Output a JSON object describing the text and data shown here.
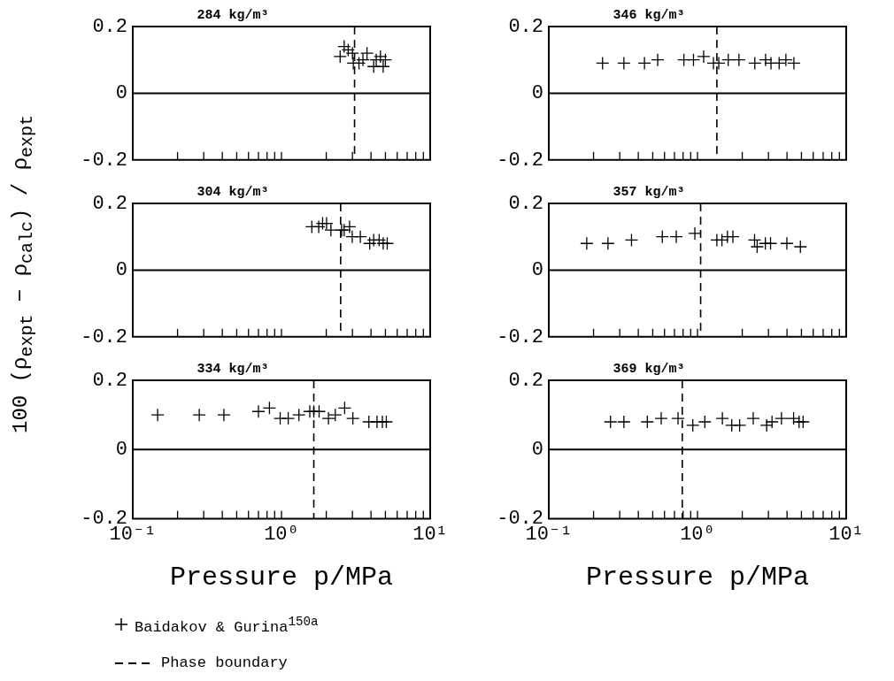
{
  "chart_data": [
    {
      "type": "scatter",
      "title": "284 kg/m³",
      "marker": "cross",
      "grid": false,
      "tick_labels": "y",
      "xlim": [
        0.1,
        10
      ],
      "ylim": [
        -0.2,
        0.2
      ],
      "log": "x",
      "xticks": [
        {
          "value": 0.1,
          "label": null
        },
        {
          "value": 0.2,
          "label": null
        },
        {
          "value": 0.3,
          "label": null
        },
        {
          "value": 0.4,
          "label": null
        },
        {
          "value": 0.5,
          "label": null
        },
        {
          "value": 0.6,
          "label": null
        },
        {
          "value": 0.7,
          "label": null
        },
        {
          "value": 0.8,
          "label": null
        },
        {
          "value": 0.9,
          "label": null
        },
        {
          "value": 1,
          "label": null
        },
        {
          "value": 2,
          "label": null
        },
        {
          "value": 3,
          "label": null
        },
        {
          "value": 4,
          "label": null
        },
        {
          "value": 5,
          "label": null
        },
        {
          "value": 6,
          "label": null
        },
        {
          "value": 7,
          "label": null
        },
        {
          "value": 8,
          "label": null
        },
        {
          "value": 9,
          "label": null
        },
        {
          "value": 10,
          "label": null
        }
      ],
      "yticks": [
        -0.2,
        0,
        0.2
      ],
      "ref_lines": [
        {
          "axis": "x",
          "value": 3.1,
          "line_style": "dashed"
        },
        {
          "axis": "y",
          "value": 0,
          "line_style": "solid"
        }
      ],
      "series": [
        {
          "color": "#000000",
          "x": [
            2.48,
            2.64,
            2.81,
            3.0,
            3.04,
            3.32,
            3.53,
            3.76,
            4.17,
            4.34,
            4.63,
            4.83,
            5.0
          ],
          "values": [
            0.11,
            0.14,
            0.13,
            0.12,
            0.09,
            0.09,
            0.1,
            0.12,
            0.08,
            0.1,
            0.11,
            0.08,
            0.1
          ]
        }
      ]
    },
    {
      "type": "scatter",
      "title": "346 kg/m³",
      "marker": "cross",
      "grid": false,
      "tick_labels": "y",
      "xlim": [
        0.1,
        10
      ],
      "ylim": [
        -0.2,
        0.2
      ],
      "log": "x",
      "xticks": [
        {
          "value": 0.1,
          "label": null
        },
        {
          "value": 0.2,
          "label": null
        },
        {
          "value": 0.3,
          "label": null
        },
        {
          "value": 0.4,
          "label": null
        },
        {
          "value": 0.5,
          "label": null
        },
        {
          "value": 0.6,
          "label": null
        },
        {
          "value": 0.7,
          "label": null
        },
        {
          "value": 0.8,
          "label": null
        },
        {
          "value": 0.9,
          "label": null
        },
        {
          "value": 1,
          "label": null
        },
        {
          "value": 2,
          "label": null
        },
        {
          "value": 3,
          "label": null
        },
        {
          "value": 4,
          "label": null
        },
        {
          "value": 5,
          "label": null
        },
        {
          "value": 6,
          "label": null
        },
        {
          "value": 7,
          "label": null
        },
        {
          "value": 8,
          "label": null
        },
        {
          "value": 9,
          "label": null
        },
        {
          "value": 10,
          "label": null
        }
      ],
      "yticks": [
        -0.2,
        0,
        0.2
      ],
      "ref_lines": [
        {
          "axis": "x",
          "value": 1.35,
          "line_style": "dashed"
        },
        {
          "axis": "y",
          "value": 0,
          "line_style": "solid"
        }
      ],
      "series": [
        {
          "color": "#000000",
          "x": [
            0.23,
            0.32,
            0.44,
            0.54,
            0.81,
            0.94,
            1.1,
            1.28,
            1.39,
            1.61,
            1.9,
            2.43,
            2.87,
            3.12,
            3.54,
            3.93,
            4.45
          ],
          "values": [
            0.09,
            0.09,
            0.09,
            0.1,
            0.1,
            0.1,
            0.11,
            0.09,
            0.09,
            0.1,
            0.1,
            0.09,
            0.1,
            0.09,
            0.09,
            0.1,
            0.09
          ]
        }
      ]
    },
    {
      "type": "scatter",
      "title": "304 kg/m³",
      "ylabel": "100 (ρ$_{expt}$ − ρ$_{calc}$) / ρ$_{expt}$",
      "marker": "cross",
      "grid": false,
      "tick_labels": "y",
      "xlim": [
        0.1,
        10
      ],
      "ylim": [
        -0.2,
        0.2
      ],
      "log": "x",
      "xticks": [
        {
          "value": 0.1,
          "label": null
        },
        {
          "value": 0.2,
          "label": null
        },
        {
          "value": 0.3,
          "label": null
        },
        {
          "value": 0.4,
          "label": null
        },
        {
          "value": 0.5,
          "label": null
        },
        {
          "value": 0.6,
          "label": null
        },
        {
          "value": 0.7,
          "label": null
        },
        {
          "value": 0.8,
          "label": null
        },
        {
          "value": 0.9,
          "label": null
        },
        {
          "value": 1,
          "label": null
        },
        {
          "value": 2,
          "label": null
        },
        {
          "value": 3,
          "label": null
        },
        {
          "value": 4,
          "label": null
        },
        {
          "value": 5,
          "label": null
        },
        {
          "value": 6,
          "label": null
        },
        {
          "value": 7,
          "label": null
        },
        {
          "value": 8,
          "label": null
        },
        {
          "value": 9,
          "label": null
        },
        {
          "value": 10,
          "label": null
        }
      ],
      "yticks": [
        -0.2,
        0,
        0.2
      ],
      "ref_lines": [
        {
          "axis": "x",
          "value": 2.5,
          "line_style": "dashed"
        },
        {
          "axis": "y",
          "value": 0,
          "line_style": "solid"
        }
      ],
      "series": [
        {
          "color": "#000000",
          "x": [
            1.6,
            1.78,
            1.89,
            2.01,
            2.15,
            2.54,
            2.64,
            2.87,
            2.99,
            3.39,
            3.92,
            4.17,
            4.54,
            4.83,
            5.14
          ],
          "values": [
            0.13,
            0.13,
            0.14,
            0.14,
            0.12,
            0.12,
            0.12,
            0.13,
            0.1,
            0.1,
            0.08,
            0.09,
            0.09,
            0.08,
            0.08
          ]
        }
      ]
    },
    {
      "type": "scatter",
      "title": "357 kg/m³",
      "marker": "cross",
      "grid": false,
      "tick_labels": "y",
      "xlim": [
        0.1,
        10
      ],
      "ylim": [
        -0.2,
        0.2
      ],
      "log": "x",
      "xticks": [
        {
          "value": 0.1,
          "label": null
        },
        {
          "value": 0.2,
          "label": null
        },
        {
          "value": 0.3,
          "label": null
        },
        {
          "value": 0.4,
          "label": null
        },
        {
          "value": 0.5,
          "label": null
        },
        {
          "value": 0.6,
          "label": null
        },
        {
          "value": 0.7,
          "label": null
        },
        {
          "value": 0.8,
          "label": null
        },
        {
          "value": 0.9,
          "label": null
        },
        {
          "value": 1,
          "label": null
        },
        {
          "value": 2,
          "label": null
        },
        {
          "value": 3,
          "label": null
        },
        {
          "value": 4,
          "label": null
        },
        {
          "value": 5,
          "label": null
        },
        {
          "value": 6,
          "label": null
        },
        {
          "value": 7,
          "label": null
        },
        {
          "value": 8,
          "label": null
        },
        {
          "value": 9,
          "label": null
        },
        {
          "value": 10,
          "label": null
        }
      ],
      "yticks": [
        -0.2,
        0,
        0.2
      ],
      "ref_lines": [
        {
          "axis": "x",
          "value": 1.05,
          "line_style": "dashed"
        },
        {
          "axis": "y",
          "value": 0,
          "line_style": "solid"
        }
      ],
      "series": [
        {
          "color": "#000000",
          "x": [
            0.18,
            0.25,
            0.36,
            0.58,
            0.72,
            0.96,
            1.35,
            1.46,
            1.59,
            1.73,
            2.42,
            2.52,
            2.86,
            3.1,
            3.99,
            4.92
          ],
          "values": [
            0.08,
            0.08,
            0.09,
            0.1,
            0.1,
            0.11,
            0.09,
            0.09,
            0.1,
            0.1,
            0.09,
            0.07,
            0.08,
            0.08,
            0.08,
            0.07
          ]
        }
      ]
    },
    {
      "type": "scatter",
      "title": "334 kg/m³",
      "xlabel": "Pressure p/MPa",
      "legend": "bottom",
      "marker": "cross",
      "grid": false,
      "xlim": [
        0.1,
        10
      ],
      "ylim": [
        -0.2,
        0.2
      ],
      "log": "x",
      "xticks": [
        {
          "value": 0.1,
          "label": "10⁻¹"
        },
        {
          "value": 0.2,
          "label": null
        },
        {
          "value": 0.3,
          "label": null
        },
        {
          "value": 0.4,
          "label": null
        },
        {
          "value": 0.5,
          "label": null
        },
        {
          "value": 0.6,
          "label": null
        },
        {
          "value": 0.7,
          "label": null
        },
        {
          "value": 0.8,
          "label": null
        },
        {
          "value": 0.9,
          "label": null
        },
        {
          "value": 1,
          "label": "10⁰"
        },
        {
          "value": 2,
          "label": null
        },
        {
          "value": 3,
          "label": null
        },
        {
          "value": 4,
          "label": null
        },
        {
          "value": 5,
          "label": null
        },
        {
          "value": 6,
          "label": null
        },
        {
          "value": 7,
          "label": null
        },
        {
          "value": 8,
          "label": null
        },
        {
          "value": 9,
          "label": null
        },
        {
          "value": 10,
          "label": "10¹"
        }
      ],
      "yticks": [
        -0.2,
        0,
        0.2
      ],
      "ref_lines": [
        {
          "axis": "x",
          "value": 1.65,
          "line_style": "dashed",
          "label": "Phase boundary"
        },
        {
          "axis": "y",
          "value": 0,
          "line_style": "solid"
        }
      ],
      "series": [
        {
          "name": "Baidakov & Gurina$^{150a}$",
          "color": "#000000",
          "x": [
            0.147,
            0.28,
            0.41,
            0.7,
            0.83,
            0.98,
            1.11,
            1.31,
            1.55,
            1.65,
            1.79,
            2.07,
            2.3,
            2.66,
            3.02,
            3.87,
            4.39,
            4.77,
            5.07
          ],
          "values": [
            0.1,
            0.1,
            0.1,
            0.11,
            0.12,
            0.09,
            0.09,
            0.1,
            0.11,
            0.11,
            0.11,
            0.09,
            0.1,
            0.12,
            0.09,
            0.08,
            0.08,
            0.08,
            0.08
          ]
        }
      ]
    },
    {
      "type": "scatter",
      "title": "369 kg/m³",
      "xlabel": "Pressure p/MPa",
      "marker": "cross",
      "grid": false,
      "xlim": [
        0.1,
        10
      ],
      "ylim": [
        -0.2,
        0.2
      ],
      "log": "x",
      "xticks": [
        {
          "value": 0.1,
          "label": "10⁻¹"
        },
        {
          "value": 0.2,
          "label": null
        },
        {
          "value": 0.3,
          "label": null
        },
        {
          "value": 0.4,
          "label": null
        },
        {
          "value": 0.5,
          "label": null
        },
        {
          "value": 0.6,
          "label": null
        },
        {
          "value": 0.7,
          "label": null
        },
        {
          "value": 0.8,
          "label": null
        },
        {
          "value": 0.9,
          "label": null
        },
        {
          "value": 1,
          "label": "10⁰"
        },
        {
          "value": 2,
          "label": null
        },
        {
          "value": 3,
          "label": null
        },
        {
          "value": 4,
          "label": null
        },
        {
          "value": 5,
          "label": null
        },
        {
          "value": 6,
          "label": null
        },
        {
          "value": 7,
          "label": null
        },
        {
          "value": 8,
          "label": null
        },
        {
          "value": 9,
          "label": null
        },
        {
          "value": 10,
          "label": "10¹"
        }
      ],
      "yticks": [
        -0.2,
        0,
        0.2
      ],
      "ref_lines": [
        {
          "axis": "x",
          "value": 0.79,
          "line_style": "dashed"
        },
        {
          "axis": "y",
          "value": 0,
          "line_style": "solid"
        }
      ],
      "series": [
        {
          "color": "#000000",
          "x": [
            0.26,
            0.32,
            0.46,
            0.57,
            0.74,
            0.93,
            1.12,
            1.47,
            1.7,
            1.92,
            2.37,
            2.92,
            3.17,
            3.67,
            4.43,
            4.82,
            5.13
          ],
          "values": [
            0.08,
            0.08,
            0.08,
            0.09,
            0.09,
            0.07,
            0.08,
            0.09,
            0.07,
            0.07,
            0.09,
            0.07,
            0.08,
            0.09,
            0.09,
            0.08,
            0.08
          ]
        }
      ]
    }
  ]
}
